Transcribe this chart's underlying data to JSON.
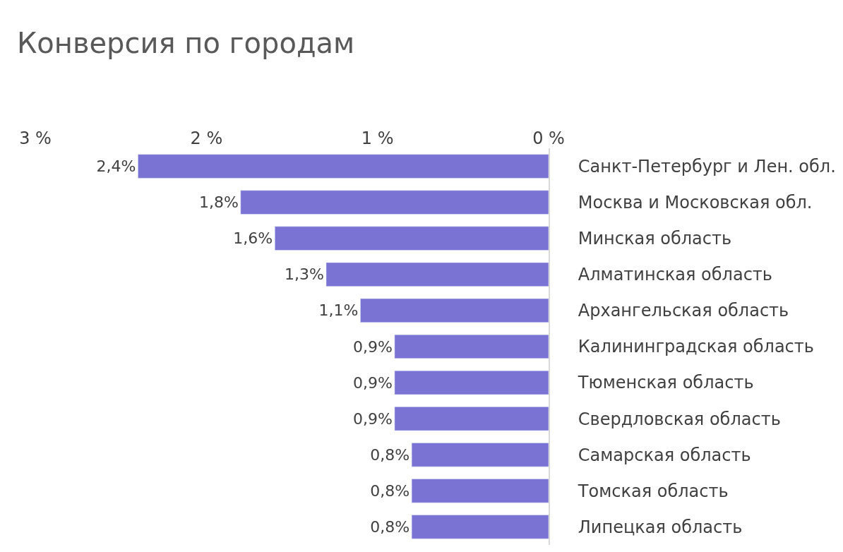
{
  "chart_data": {
    "type": "bar",
    "title": "Конверсия по городам",
    "orientation": "horizontal",
    "categories": [
      "Санкт-Петербург и Лен. обл.",
      "Москва и Московская обл.",
      "Минская область",
      "Алматинская область",
      "Архангельская область",
      "Калининградская область",
      "Тюменская область",
      "Свердловская область",
      "Самарская область",
      "Томская область",
      "Липецкая область"
    ],
    "values": [
      2.4,
      1.8,
      1.6,
      1.3,
      1.1,
      0.9,
      0.9,
      0.9,
      0.8,
      0.8,
      0.8
    ],
    "value_labels": [
      "2,4%",
      "1,8%",
      "1,6%",
      "1,3%",
      "1,1%",
      "0,9%",
      "0,9%",
      "0,9%",
      "0,8%",
      "0,8%",
      "0,8%"
    ],
    "color": "#7b73d3",
    "xlim": [
      3,
      0
    ],
    "xticks": [
      {
        "value": 3,
        "label": "3 %"
      },
      {
        "value": 2,
        "label": "2 %"
      },
      {
        "value": 1,
        "label": "1 %"
      },
      {
        "value": 0,
        "label": "0 %"
      }
    ],
    "legend": false
  }
}
